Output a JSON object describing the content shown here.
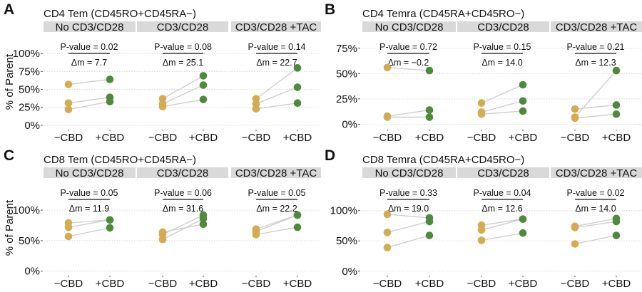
{
  "colors": {
    "minus_cbd": "#D4AB4F",
    "plus_cbd": "#4F8A3C",
    "pair_line": "#CFCFCF",
    "strip": "#D9D9D9",
    "grid": "#D8D8D8"
  },
  "y_axis_title": "% of Parent",
  "chart_data": [
    {
      "type": "scatter",
      "letter": "A",
      "title": "CD4 Tem (CD45RO+CD45RA−)",
      "ylabel": "% of Parent",
      "ylim": [
        -7,
        120
      ],
      "yticks": [
        0,
        25,
        50,
        75,
        100
      ],
      "ytick_labels": [
        "0%",
        "25%",
        "50%",
        "75%",
        "100%"
      ],
      "categories": [
        "−CBD",
        "+CBD"
      ],
      "grid": true,
      "facets": [
        {
          "label": "No CD3/CD28",
          "p_value": "P-value = 0.02",
          "delta_m": "Δm = 7.7",
          "pairs": [
            [
              57,
              64
            ],
            [
              31,
              39
            ],
            [
              22,
              33
            ]
          ]
        },
        {
          "label": "CD3/CD28",
          "p_value": "P-value = 0.08",
          "delta_m": "Δm = 25.1",
          "pairs": [
            [
              37,
              69
            ],
            [
              30,
              56
            ],
            [
              26,
              36
            ]
          ]
        },
        {
          "label": "CD3/CD28 +TAC",
          "p_value": "P-value = 0.14",
          "delta_m": "Δm = 22.7",
          "pairs": [
            [
              37,
              80
            ],
            [
              30,
              53
            ],
            [
              23,
              31
            ]
          ]
        }
      ]
    },
    {
      "type": "scatter",
      "letter": "B",
      "title": "CD4 Temra (CD45RA+CD45RO−)",
      "ylabel": "",
      "ylim": [
        -6,
        84
      ],
      "yticks": [
        0,
        25,
        50,
        75
      ],
      "ytick_labels": [
        "0%",
        "25%",
        "50%",
        "75%"
      ],
      "categories": [
        "−CBD",
        "+CBD"
      ],
      "grid": true,
      "facets": [
        {
          "label": "No CD3/CD28",
          "p_value": "P-value = 0.72",
          "delta_m": "Δm = −0.2",
          "pairs": [
            [
              56,
              53
            ],
            [
              8,
              14
            ],
            [
              7,
              7
            ]
          ]
        },
        {
          "label": "CD3/CD28",
          "p_value": "P-value = 0.15",
          "delta_m": "Δm = 14.0",
          "pairs": [
            [
              21,
              39
            ],
            [
              12,
              23
            ],
            [
              10,
              13
            ]
          ]
        },
        {
          "label": "CD3/CD28 +TAC",
          "p_value": "P-value = 0.21",
          "delta_m": "Δm = 12.3",
          "pairs": [
            [
              15,
              19
            ],
            [
              7,
              53
            ],
            [
              6,
              10
            ]
          ]
        }
      ]
    },
    {
      "type": "scatter",
      "letter": "C",
      "title": "CD8 Tem (CD45RO+CD45RA−)",
      "ylabel": "% of Parent",
      "ylim": [
        -8.5,
        141
      ],
      "yticks": [
        0,
        50,
        100
      ],
      "ytick_labels": [
        "0%",
        "50%",
        "100%"
      ],
      "categories": [
        "−CBD",
        "+CBD"
      ],
      "grid": true,
      "facets": [
        {
          "label": "No CD3/CD28",
          "p_value": "P-value = 0.05",
          "delta_m": "Δm = 11.9",
          "pairs": [
            [
              79,
              84
            ],
            [
              72,
              84
            ],
            [
              57,
              71
            ]
          ]
        },
        {
          "label": "CD3/CD28",
          "p_value": "P-value = 0.06",
          "delta_m": "Δm = 31.6",
          "pairs": [
            [
              64,
              77
            ],
            [
              60,
              92
            ],
            [
              52,
              86
            ]
          ]
        },
        {
          "label": "CD3/CD28 +TAC",
          "p_value": "P-value = 0.05",
          "delta_m": "Δm = 22.2",
          "pairs": [
            [
              69,
              92
            ],
            [
              65,
              92
            ],
            [
              60,
              72
            ]
          ]
        }
      ]
    },
    {
      "type": "scatter",
      "letter": "D",
      "title": "CD8 Temra (CD45RA+CD45RO−)",
      "ylabel": "",
      "ylim": [
        -8.5,
        142
      ],
      "yticks": [
        0,
        50,
        100
      ],
      "ytick_labels": [
        "0%",
        "50%",
        "100%"
      ],
      "categories": [
        "−CBD",
        "+CBD"
      ],
      "grid": true,
      "facets": [
        {
          "label": "No CD3/CD28",
          "p_value": "P-value = 0.33",
          "delta_m": "Δm = 19.0",
          "pairs": [
            [
              94,
              88
            ],
            [
              64,
              82
            ],
            [
              39,
              59
            ]
          ]
        },
        {
          "label": "CD3/CD28",
          "p_value": "P-value = 0.04",
          "delta_m": "Δm = 12.6",
          "pairs": [
            [
              76,
              86
            ],
            [
              68,
              86
            ],
            [
              51,
              63
            ]
          ]
        },
        {
          "label": "CD3/CD28 +TAC",
          "p_value": "P-value = 0.02",
          "delta_m": "Δm = 14.0",
          "pairs": [
            [
              74,
              87
            ],
            [
              72,
              82
            ],
            [
              45,
              59
            ]
          ]
        }
      ]
    }
  ]
}
